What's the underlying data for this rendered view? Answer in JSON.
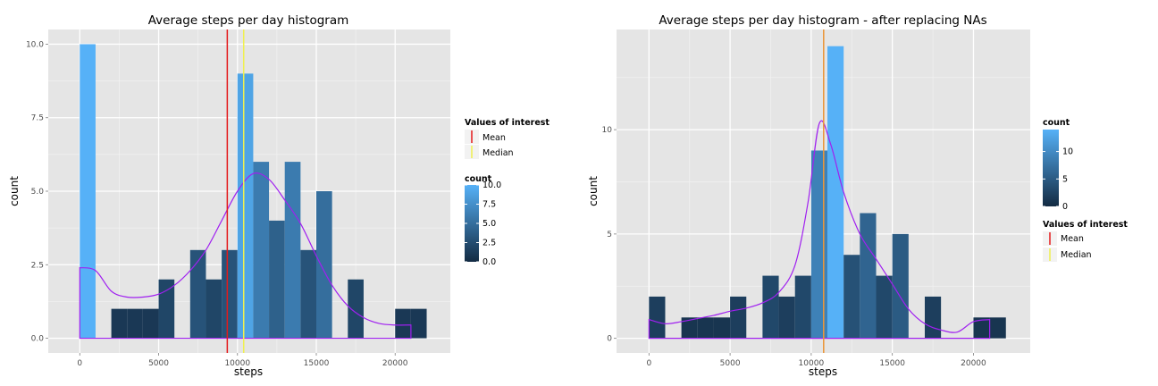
{
  "chart_data": [
    {
      "type": "bar",
      "title": "Average steps per day histogram",
      "xlabel": "steps",
      "ylabel": "count",
      "xlim": [
        -2000,
        23500
      ],
      "ylim": [
        -0.5,
        10.5
      ],
      "x_ticks": [
        0,
        5000,
        10000,
        15000,
        20000
      ],
      "y_ticks": [
        0.0,
        2.5,
        5.0,
        7.5,
        10.0
      ],
      "y_tick_labels": [
        "0.0",
        "2.5",
        "5.0",
        "7.5",
        "10.0"
      ],
      "bin_width": 1000,
      "bin_starts": [
        0,
        2000,
        3000,
        4000,
        5000,
        7000,
        8000,
        9000,
        10000,
        11000,
        12000,
        13000,
        14000,
        15000,
        17000,
        20000,
        21000
      ],
      "values": [
        10,
        1,
        1,
        1,
        2,
        3,
        2,
        3,
        9,
        6,
        4,
        6,
        3,
        5,
        2,
        1,
        1
      ],
      "density_points": [
        [
          0,
          2.4
        ],
        [
          1000,
          2.3
        ],
        [
          2000,
          1.6
        ],
        [
          3000,
          1.4
        ],
        [
          4000,
          1.4
        ],
        [
          5000,
          1.5
        ],
        [
          6000,
          1.8
        ],
        [
          7000,
          2.3
        ],
        [
          8000,
          3.0
        ],
        [
          9000,
          4.0
        ],
        [
          10000,
          5.0
        ],
        [
          11000,
          5.6
        ],
        [
          12000,
          5.4
        ],
        [
          13000,
          4.7
        ],
        [
          14000,
          3.9
        ],
        [
          15000,
          2.8
        ],
        [
          16000,
          1.8
        ],
        [
          17000,
          1.1
        ],
        [
          18000,
          0.7
        ],
        [
          19000,
          0.5
        ],
        [
          20000,
          0.45
        ],
        [
          21000,
          0.45
        ]
      ],
      "density_color": "#a020f0",
      "mean": 9354,
      "median": 10395,
      "values_of_interest": {
        "title": "Values of interest",
        "items": [
          {
            "label": "Mean",
            "color": "#e41a1c"
          },
          {
            "label": "Median",
            "color": "#f0f050"
          }
        ]
      },
      "count_legend": {
        "title": "count",
        "ticks": [
          0.0,
          2.5,
          5.0,
          7.5,
          10.0
        ],
        "tick_labels": [
          "0.0",
          "2.5",
          "5.0",
          "7.5",
          "10.0"
        ],
        "range": [
          0,
          10
        ],
        "low_color": "#132b43",
        "high_color": "#56b1f7"
      },
      "legend_order": [
        "values_of_interest",
        "count"
      ],
      "grid": true
    },
    {
      "type": "bar",
      "title": "Average steps per day histogram - after replacing NAs",
      "xlabel": "steps",
      "ylabel": "count",
      "xlim": [
        -2000,
        23500
      ],
      "ylim": [
        -0.7,
        14.8
      ],
      "x_ticks": [
        0,
        5000,
        10000,
        15000,
        20000
      ],
      "y_ticks": [
        0,
        5,
        10
      ],
      "y_tick_labels": [
        "0",
        "5",
        "10"
      ],
      "bin_width": 1000,
      "bin_starts": [
        0,
        2000,
        3000,
        4000,
        5000,
        7000,
        8000,
        9000,
        10000,
        11000,
        12000,
        13000,
        14000,
        15000,
        17000,
        20000,
        21000
      ],
      "values": [
        2,
        1,
        1,
        1,
        2,
        3,
        2,
        3,
        9,
        14,
        4,
        6,
        3,
        5,
        2,
        1,
        1
      ],
      "density_points": [
        [
          0,
          0.9
        ],
        [
          1000,
          0.7
        ],
        [
          2000,
          0.8
        ],
        [
          3000,
          0.95
        ],
        [
          4000,
          1.1
        ],
        [
          5000,
          1.3
        ],
        [
          6000,
          1.45
        ],
        [
          7000,
          1.7
        ],
        [
          8000,
          2.2
        ],
        [
          9000,
          3.5
        ],
        [
          9800,
          6.5
        ],
        [
          10500,
          10.3
        ],
        [
          11200,
          9.3
        ],
        [
          12000,
          7.0
        ],
        [
          13000,
          5.0
        ],
        [
          14000,
          3.8
        ],
        [
          15000,
          2.6
        ],
        [
          16000,
          1.4
        ],
        [
          17000,
          0.7
        ],
        [
          18000,
          0.4
        ],
        [
          19000,
          0.3
        ],
        [
          20000,
          0.8
        ],
        [
          21000,
          0.9
        ]
      ],
      "density_color": "#a020f0",
      "mean": 10766,
      "median": 10766,
      "values_of_interest": {
        "title": "Values of interest",
        "items": [
          {
            "label": "Mean",
            "color": "#e41a1c"
          },
          {
            "label": "Median",
            "color": "#f0f050"
          }
        ]
      },
      "count_legend": {
        "title": "count",
        "ticks": [
          0,
          5,
          10
        ],
        "tick_labels": [
          "0",
          "5",
          "10"
        ],
        "range": [
          0,
          14
        ],
        "low_color": "#132b43",
        "high_color": "#56b1f7"
      },
      "legend_order": [
        "count",
        "values_of_interest"
      ],
      "grid": true
    }
  ]
}
